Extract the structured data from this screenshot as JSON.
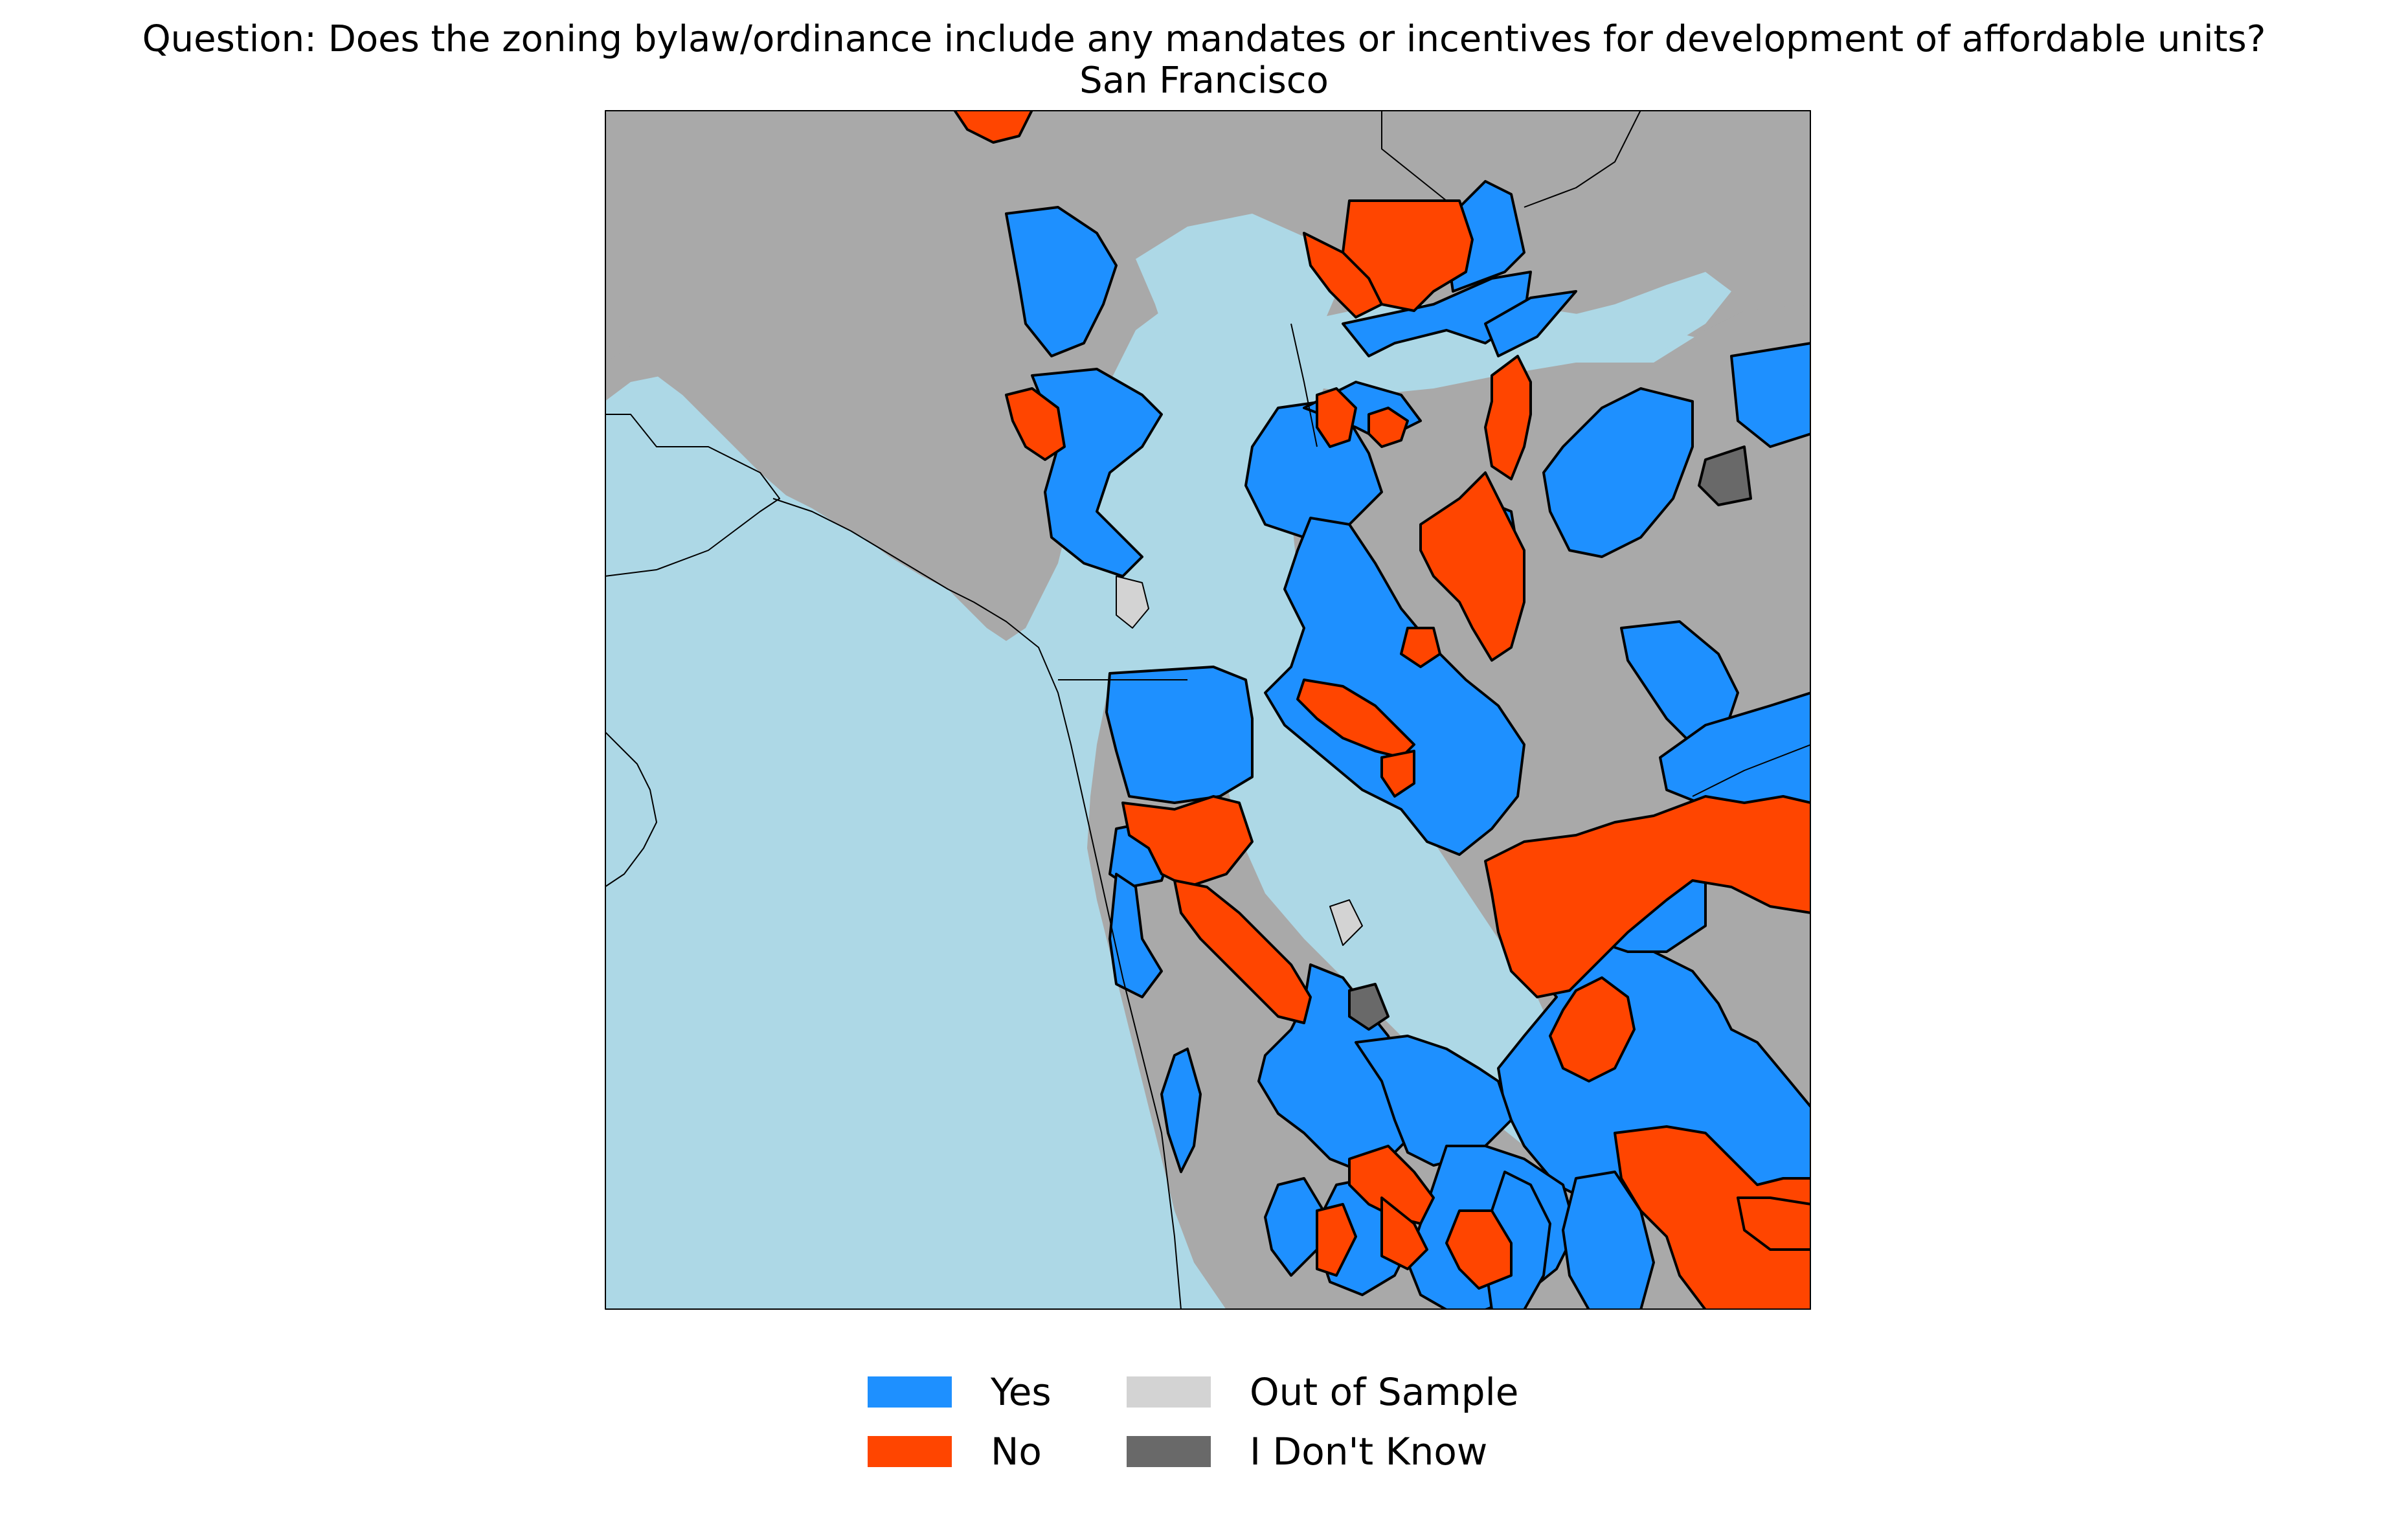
{
  "title": "Question: Does the zoning bylaw/ordinance include any mandates or incentives for development of affordable units?",
  "subtitle": "San Francisco",
  "colors": {
    "water": "#add8e6",
    "land": "#a9a9a9",
    "yes": "#1e90ff",
    "no": "#ff4500",
    "out_of_sample": "#d3d3d3",
    "dont_know": "#696969",
    "border": "#000000"
  },
  "legend": [
    {
      "label": "Yes",
      "category": "yes",
      "color": "#1e90ff"
    },
    {
      "label": "No",
      "category": "no",
      "color": "#ff4500"
    },
    {
      "label": "Out of Sample",
      "category": "out_of_sample",
      "color": "#d3d3d3"
    },
    {
      "label": "I Don't Know",
      "category": "dont_know",
      "color": "#696969"
    }
  ]
}
